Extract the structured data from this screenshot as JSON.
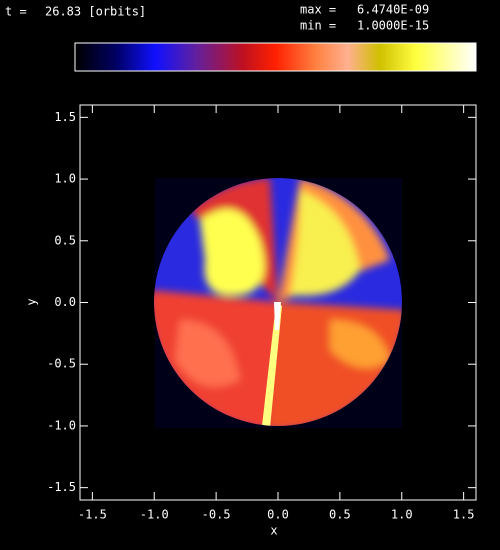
{
  "chart_data": {
    "type": "image",
    "time_label": "t =",
    "time": "26.83 [orbits]",
    "max_label": "max =",
    "max": "6.4740E-09",
    "min_label": "min =",
    "min": "1.0000E-15",
    "xlabel": "x",
    "ylabel": "y",
    "xlim": [
      -1.6,
      1.6
    ],
    "ylim": [
      -1.6,
      1.6
    ],
    "xticks": [
      -1.5,
      {
        "value": -1,
        "label": "-1.0"
      },
      -0.5,
      {
        "value": 0,
        "label": "0.0"
      },
      0.5,
      {
        "value": 1,
        "label": "1.0"
      },
      1.5
    ],
    "yticks": [
      -1.5,
      {
        "value": -1,
        "label": "-1.0"
      },
      -0.5,
      {
        "value": 0,
        "label": "0.0"
      },
      0.5,
      {
        "value": 1,
        "label": "1.0"
      },
      1.5
    ]
  }
}
